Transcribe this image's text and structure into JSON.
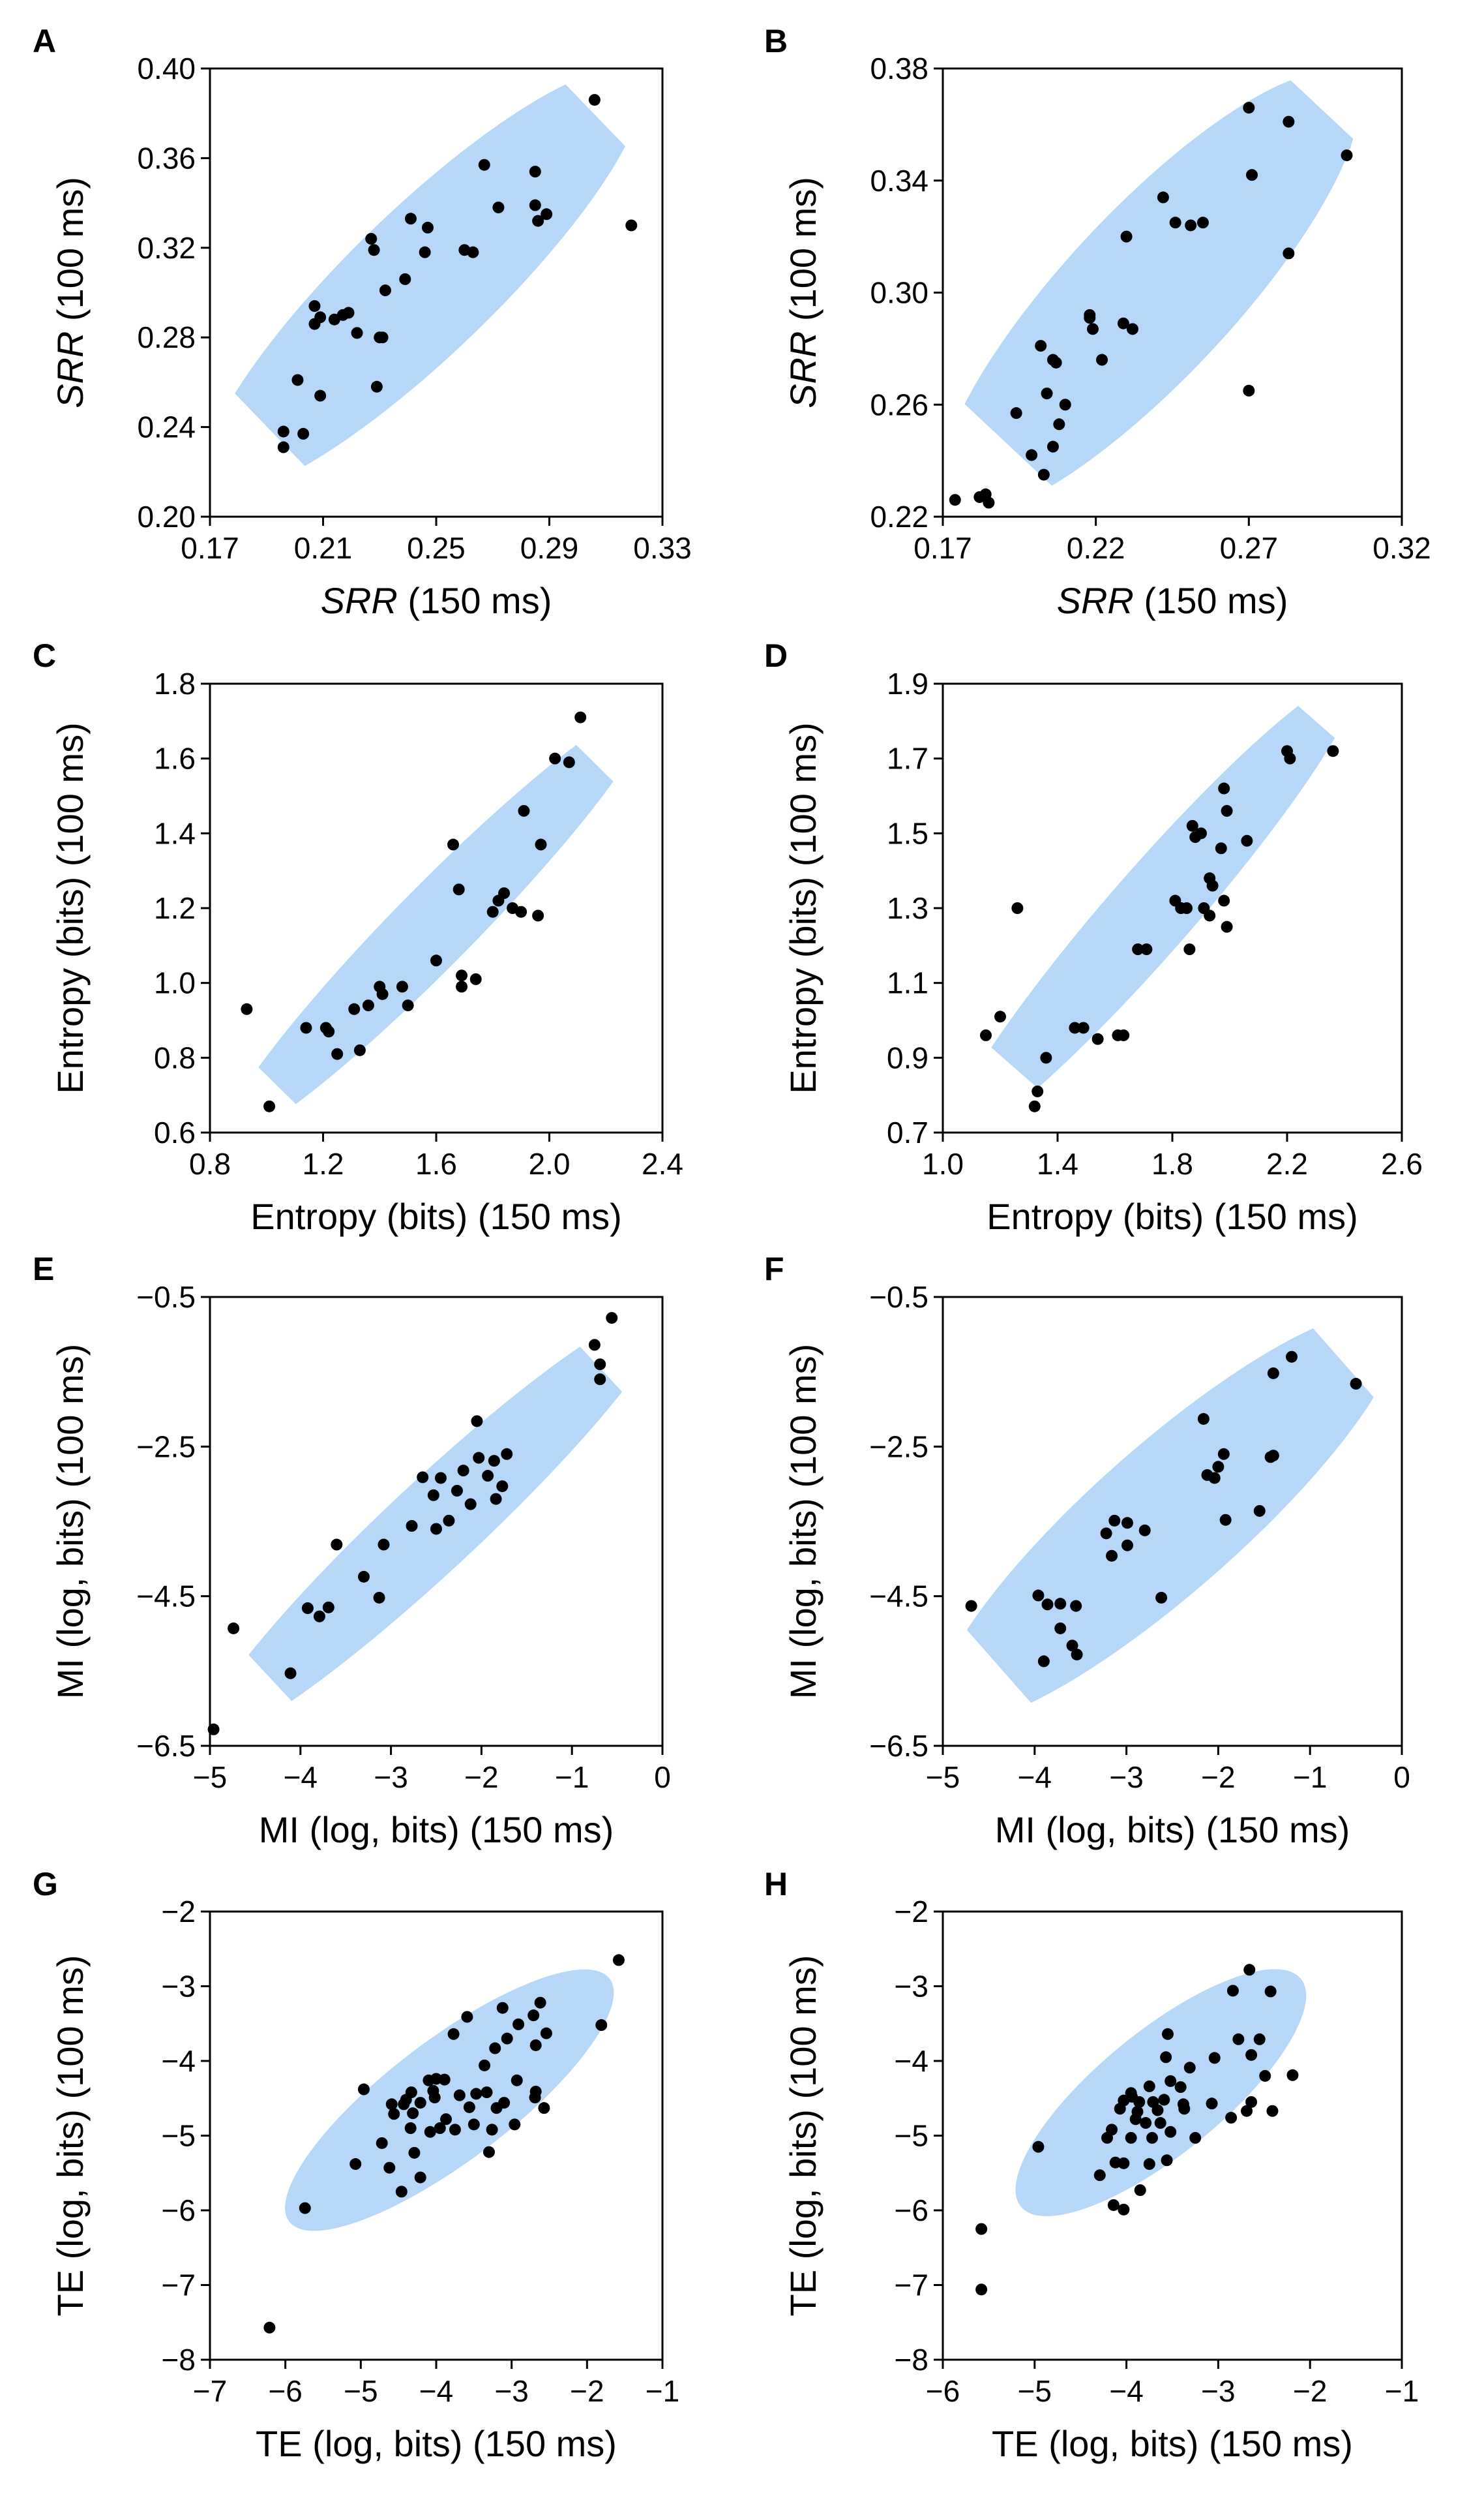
{
  "figure": {
    "ellipse_color": "#b7d7f8",
    "point_color": "#000000"
  },
  "chart_data": [
    {
      "panel": "A",
      "type": "scatter",
      "xlabel_italic": "SRR",
      "xlabel_rest": " (150 ms)",
      "ylabel_italic": "SRR",
      "ylabel_rest": " (100 ms)",
      "xlim": [
        0.17,
        0.33
      ],
      "ylim": [
        0.2,
        0.4
      ],
      "xticks": [
        "0.17",
        "0.21",
        "0.25",
        "0.29",
        "0.33"
      ],
      "yticks": [
        "0.20",
        "0.24",
        "0.28",
        "0.32",
        "0.36",
        "0.40"
      ],
      "ellipse": {
        "p1": [
          0.17,
          0.213
        ],
        "p2": [
          0.321,
          0.397
        ],
        "width": 0.0513
      },
      "x": [
        0.306,
        0.319,
        0.267,
        0.272,
        0.285,
        0.285,
        0.289,
        0.286,
        0.26,
        0.263,
        0.247,
        0.246,
        0.241,
        0.227,
        0.228,
        0.239,
        0.232,
        0.23,
        0.207,
        0.207,
        0.209,
        0.214,
        0.217,
        0.219,
        0.222,
        0.231,
        0.229,
        0.209,
        0.201,
        0.196,
        0.196,
        0.203
      ],
      "y": [
        0.386,
        0.33,
        0.357,
        0.338,
        0.354,
        0.339,
        0.335,
        0.332,
        0.319,
        0.318,
        0.329,
        0.318,
        0.333,
        0.324,
        0.319,
        0.306,
        0.301,
        0.28,
        0.294,
        0.286,
        0.289,
        0.288,
        0.29,
        0.291,
        0.282,
        0.28,
        0.258,
        0.254,
        0.261,
        0.238,
        0.231,
        0.237
      ]
    },
    {
      "panel": "B",
      "type": "scatter",
      "xlabel_italic": "SRR",
      "xlabel_rest": " (150 ms)",
      "ylabel_italic": "SRR",
      "ylabel_rest": " (100 ms)",
      "xlim": [
        0.17,
        0.32
      ],
      "ylim": [
        0.22,
        0.38
      ],
      "xticks": [
        "0.17",
        "0.22",
        "0.27",
        "0.32"
      ],
      "yticks": [
        "0.22",
        "0.26",
        "0.30",
        "0.34",
        "0.38"
      ],
      "ellipse": {
        "p1": [
          0.172,
          0.223
        ],
        "p2": [
          0.303,
          0.376
        ],
        "width": 0.055
      },
      "x": [
        0.27,
        0.283,
        0.302,
        0.271,
        0.283,
        0.27,
        0.242,
        0.246,
        0.251,
        0.255,
        0.23,
        0.218,
        0.218,
        0.219,
        0.222,
        0.229,
        0.232,
        0.206,
        0.207,
        0.202,
        0.204,
        0.21,
        0.208,
        0.206,
        0.194,
        0.199,
        0.203,
        0.184,
        0.174,
        0.182,
        0.185
      ],
      "y": [
        0.366,
        0.361,
        0.349,
        0.342,
        0.314,
        0.265,
        0.334,
        0.325,
        0.324,
        0.325,
        0.32,
        0.292,
        0.291,
        0.287,
        0.276,
        0.289,
        0.287,
        0.276,
        0.275,
        0.281,
        0.264,
        0.26,
        0.253,
        0.245,
        0.257,
        0.242,
        0.235,
        0.228,
        0.226,
        0.227,
        0.225
      ]
    },
    {
      "panel": "C",
      "type": "scatter",
      "xlabel_italic": "",
      "xlabel_rest": "Entropy (bits) (150 ms)",
      "ylabel_italic": "",
      "ylabel_rest": "Entropy (bits) (100 ms)",
      "xlim": [
        0.8,
        2.4
      ],
      "ylim": [
        0.6,
        1.8
      ],
      "xticks": [
        "0.8",
        "1.2",
        "1.6",
        "2.0",
        "2.4"
      ],
      "yticks": [
        "0.6",
        "0.8",
        "1.0",
        "1.2",
        "1.4",
        "1.6",
        "1.8"
      ],
      "ellipse": {
        "p1": [
          0.855,
          0.585
        ],
        "p2": [
          2.34,
          1.725
        ],
        "width": 0.2824
      },
      "x": [
        2.11,
        2.02,
        2.07,
        1.91,
        1.97,
        1.66,
        1.68,
        1.8,
        1.82,
        1.84,
        1.87,
        1.9,
        1.96,
        1.74,
        1.69,
        1.69,
        1.6,
        1.48,
        1.5,
        1.41,
        1.4,
        1.36,
        1.31,
        1.21,
        1.14,
        1.22,
        1.25,
        1.33,
        0.93,
        1.01
      ],
      "y": [
        1.71,
        1.6,
        1.59,
        1.46,
        1.37,
        1.37,
        1.25,
        1.19,
        1.22,
        1.24,
        1.2,
        1.19,
        1.18,
        1.01,
        1.02,
        0.99,
        1.06,
        0.99,
        0.94,
        0.97,
        0.99,
        0.94,
        0.93,
        0.88,
        0.88,
        0.87,
        0.81,
        0.82,
        0.93,
        0.67
      ]
    },
    {
      "panel": "D",
      "type": "scatter",
      "xlabel_italic": "",
      "xlabel_rest": "Entropy (bits) (150 ms)",
      "ylabel_italic": "",
      "ylabel_rest": "Entropy (bits) (100 ms)",
      "xlim": [
        1.0,
        2.6
      ],
      "ylim": [
        0.7,
        1.9
      ],
      "xticks": [
        "1.0",
        "1.4",
        "1.8",
        "2.2",
        "2.6"
      ],
      "yticks": [
        "0.7",
        "0.9",
        "1.1",
        "1.3",
        "1.5",
        "1.7",
        "1.9"
      ],
      "ellipse": {
        "p1": [
          1.03,
          0.68
        ],
        "p2": [
          2.43,
          1.91
        ],
        "width": 0.2953
      },
      "x": [
        2.2,
        2.21,
        2.36,
        1.98,
        1.99,
        1.87,
        1.9,
        1.88,
        2.06,
        1.97,
        1.93,
        1.94,
        1.98,
        1.81,
        1.85,
        1.83,
        1.91,
        1.93,
        1.99,
        1.71,
        1.68,
        1.86,
        1.26,
        1.46,
        1.49,
        1.54,
        1.61,
        1.63,
        1.36,
        1.33,
        1.32,
        1.2,
        1.15
      ],
      "y": [
        1.72,
        1.7,
        1.72,
        1.62,
        1.56,
        1.52,
        1.5,
        1.49,
        1.48,
        1.46,
        1.38,
        1.36,
        1.32,
        1.32,
        1.3,
        1.3,
        1.3,
        1.28,
        1.25,
        1.19,
        1.19,
        1.19,
        1.3,
        0.98,
        0.98,
        0.95,
        0.96,
        0.96,
        0.9,
        0.81,
        0.77,
        1.01,
        0.96
      ]
    },
    {
      "panel": "E",
      "type": "scatter",
      "xlabel_italic": "",
      "xlabel_rest": "MI (log, bits) (150 ms)",
      "ylabel_italic": "",
      "ylabel_rest": "MI (log, bits) (100 ms)",
      "xlim": [
        -5,
        0
      ],
      "ylim": [
        -6.5,
        -0.5
      ],
      "xticks": [
        "-5",
        "-4",
        "-3",
        "-2",
        "-1",
        "0"
      ],
      "yticks": [
        "-0.5",
        "-2.5",
        "-4.5",
        "-6.5"
      ],
      "ellipse": {
        "p1": [
          -5.05,
          -6.4
        ],
        "p2": [
          0.0,
          -0.7
        ],
        "width": 1.0
      },
      "x": [
        -0.56,
        -0.75,
        -0.69,
        -0.69,
        -2.05,
        -1.72,
        -1.86,
        -2.03,
        -2.2,
        -2.45,
        -2.65,
        -2.53,
        -2.77,
        -1.93,
        -1.77,
        -1.84,
        -2.27,
        -2.12,
        -2.36,
        -2.5,
        -3.08,
        -3.6,
        -3.3,
        -3.79,
        -3.13,
        -3.69,
        -3.92,
        -4.11,
        -4.74,
        -4.96
      ],
      "y": [
        -0.78,
        -1.14,
        -1.4,
        -1.6,
        -2.16,
        -2.6,
        -2.69,
        -2.65,
        -2.82,
        -2.92,
        -2.91,
        -3.15,
        -3.56,
        -2.89,
        -3.03,
        -3.2,
        -3.09,
        -3.27,
        -3.49,
        -3.6,
        -3.81,
        -3.81,
        -4.24,
        -4.77,
        -4.52,
        -4.65,
        -4.66,
        -5.53,
        -4.93,
        -6.28
      ]
    },
    {
      "panel": "F",
      "type": "scatter",
      "xlabel_italic": "",
      "xlabel_rest": "MI (log, bits) (150 ms)",
      "ylabel_italic": "",
      "ylabel_rest": "MI (log, bits) (100 ms)",
      "xlim": [
        -5,
        0
      ],
      "ylim": [
        -6.5,
        -0.5
      ],
      "xticks": [
        "-5",
        "-4",
        "-3",
        "-2",
        "-1",
        "0"
      ],
      "yticks": [
        "-0.5",
        "-2.5",
        "-4.5",
        "-6.5"
      ],
      "ellipse": {
        "p1": [
          -5.0,
          -6.1
        ],
        "p2": [
          -0.1,
          -0.8
        ],
        "width": 1.6
      },
      "x": [
        -1.2,
        -1.4,
        -0.5,
        -2.16,
        -1.94,
        -2.0,
        -2.04,
        -1.4,
        -1.43,
        -2.12,
        -1.55,
        -1.92,
        -3.13,
        -2.99,
        -2.8,
        -3.22,
        -3.16,
        -2.62,
        -2.99,
        -3.96,
        -4.69,
        -3.72,
        -3.86,
        -3.72,
        -3.55,
        -3.59,
        -3.9,
        -3.54
      ],
      "y": [
        -1.3,
        -1.52,
        -1.66,
        -2.13,
        -2.6,
        -2.77,
        -2.92,
        -2.62,
        -2.64,
        -2.88,
        -3.36,
        -3.48,
        -3.49,
        -3.52,
        -3.62,
        -3.66,
        -3.96,
        -4.52,
        -3.82,
        -4.49,
        -4.63,
        -4.6,
        -4.61,
        -4.93,
        -4.63,
        -5.16,
        -5.37,
        -5.28
      ]
    },
    {
      "panel": "G",
      "type": "scatter",
      "xlabel_italic": "",
      "xlabel_rest": "TE (log, bits) (150 ms)",
      "ylabel_italic": "",
      "ylabel_rest": "TE (log, bits) (100 ms)",
      "xlim": [
        -7,
        -1
      ],
      "ylim": [
        -8,
        -2
      ],
      "xticks": [
        "-7",
        "-6",
        "-5",
        "-4",
        "-3",
        "-2",
        "-1"
      ],
      "yticks": [
        "-8",
        "-7",
        "-6",
        "-5",
        "-4",
        "-3",
        "-2"
      ],
      "ellipse": {
        "p1": [
          -5.95,
          -6.15
        ],
        "p2": [
          -1.7,
          -2.9
        ],
        "width": 1.61
      },
      "x": [
        -1.58,
        -1.81,
        -2.62,
        -2.71,
        -2.54,
        -2.68,
        -2.91,
        -3.06,
        -3.12,
        -3.59,
        -3.77,
        -3.22,
        -3.36,
        -4.1,
        -4.0,
        -3.89,
        -4.04,
        -4.33,
        -4.4,
        -4.43,
        -4.21,
        -4.02,
        -3.69,
        -3.47,
        -3.33,
        -2.68,
        -2.93,
        -3.1,
        -2.69,
        -2.57,
        -3.56,
        -3.2,
        -3.87,
        -4.31,
        -4.56,
        -4.34,
        -3.95,
        -3.75,
        -3.5,
        -3.26,
        -2.96,
        -4.96,
        -4.59,
        -4.72,
        -4.29,
        -5.07,
        -4.62,
        -4.46,
        -4.21,
        -5.74,
        -6.21,
        -3.3,
        -4.08
      ],
      "y": [
        -2.65,
        -3.52,
        -3.22,
        -3.39,
        -3.63,
        -3.79,
        -3.51,
        -3.7,
        -3.29,
        -3.41,
        -3.64,
        -3.83,
        -4.06,
        -4.26,
        -4.24,
        -4.25,
        -4.4,
        -4.42,
        -4.52,
        -4.58,
        -4.56,
        -4.49,
        -4.46,
        -4.44,
        -4.42,
        -4.41,
        -4.26,
        -4.56,
        -4.49,
        -4.63,
        -4.62,
        -4.63,
        -4.78,
        -4.7,
        -4.71,
        -4.9,
        -4.9,
        -4.92,
        -4.85,
        -4.92,
        -4.85,
        -4.38,
        -4.58,
        -5.1,
        -5.23,
        -5.38,
        -5.43,
        -5.75,
        -5.56,
        -5.97,
        -7.57,
        -5.22,
        -4.95
      ]
    },
    {
      "panel": "H",
      "type": "scatter",
      "xlabel_italic": "",
      "xlabel_rest": "TE (log, bits) (150 ms)",
      "ylabel_italic": "",
      "ylabel_rest": "TE (log, bits) (100 ms)",
      "xlim": [
        -6,
        -1
      ],
      "ylim": [
        -8,
        -2
      ],
      "xticks": [
        "-6",
        "-5",
        "-4",
        "-3",
        "-2",
        "-1"
      ],
      "yticks": [
        "-8",
        "-7",
        "-6",
        "-5",
        "-4",
        "-3",
        "-2"
      ],
      "ellipse": {
        "p1": [
          -5.15,
          -5.95
        ],
        "p2": [
          -2.1,
          -2.9
        ],
        "width": 1.34
      },
      "x": [
        -2.66,
        -2.84,
        -2.43,
        -2.55,
        -2.78,
        -2.64,
        -3.04,
        -3.55,
        -3.57,
        -3.31,
        -3.52,
        -3.41,
        -3.75,
        -3.95,
        -3.94,
        -4.03,
        -3.86,
        -3.71,
        -3.66,
        -2.19,
        -2.49,
        -2.41,
        -2.69,
        -2.64,
        -2.86,
        -3.07,
        -3.38,
        -3.59,
        -3.88,
        -4.07,
        -3.9,
        -3.79,
        -3.63,
        -3.52,
        -4.16,
        -4.21,
        -3.95,
        -3.72,
        -3.25,
        -3.37,
        -3.75,
        -4.03,
        -4.29,
        -4.14,
        -3.85,
        -3.56,
        -4.12,
        -4.03,
        -4.96,
        -5.58,
        -5.58
      ],
      "y": [
        -2.78,
        -3.06,
        -3.07,
        -3.71,
        -3.71,
        -3.92,
        -3.96,
        -3.64,
        -3.95,
        -4.09,
        -4.27,
        -4.35,
        -4.34,
        -4.43,
        -4.48,
        -4.53,
        -4.55,
        -4.55,
        -4.66,
        -4.19,
        -4.2,
        -4.67,
        -4.67,
        -4.55,
        -4.76,
        -4.57,
        -4.58,
        -4.52,
        -4.68,
        -4.64,
        -4.78,
        -4.83,
        -4.83,
        -4.95,
        -4.92,
        -5.03,
        -5.03,
        -5.03,
        -5.03,
        -4.64,
        -5.38,
        -5.37,
        -5.53,
        -5.93,
        -5.73,
        -5.33,
        -5.36,
        -5.99,
        -5.15,
        -6.25,
        -7.06
      ]
    }
  ]
}
